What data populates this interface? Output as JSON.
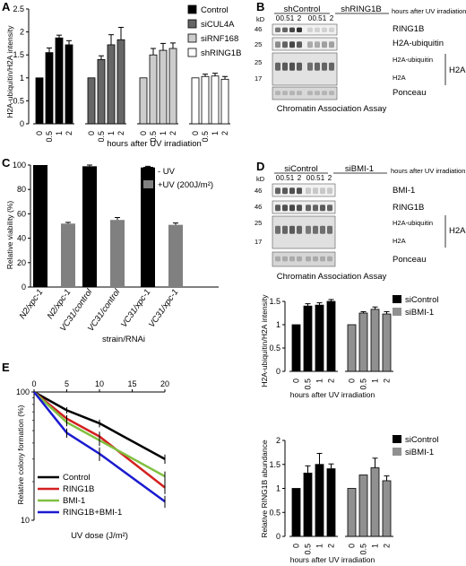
{
  "panels": {
    "A": {
      "label": "A",
      "chart_data": {
        "type": "bar",
        "ylabel": "H2A-ubiquitin/H2A intensity",
        "xlabel": "hours after UV irradiation",
        "ylim": [
          0,
          2.5
        ],
        "yticks": [
          0,
          0.5,
          1,
          1.5,
          2,
          2.5
        ],
        "categories": [
          "0",
          "0.5",
          "1",
          "2"
        ],
        "legend_position": "top-right",
        "series": [
          {
            "name": "Control",
            "color": "#000000",
            "values": [
              1.0,
              1.55,
              1.87,
              1.72
            ],
            "errors": [
              0.0,
              0.1,
              0.06,
              0.09
            ]
          },
          {
            "name": "siCUL4A",
            "color": "#666666",
            "values": [
              1.0,
              1.4,
              1.72,
              1.83
            ],
            "errors": [
              0.0,
              0.08,
              0.22,
              0.27
            ]
          },
          {
            "name": "siRNF168",
            "color": "#cccccc",
            "values": [
              1.0,
              1.5,
              1.6,
              1.64
            ],
            "errors": [
              0.0,
              0.14,
              0.15,
              0.12
            ]
          },
          {
            "name": "shRING1B",
            "color": "#ffffff",
            "values": [
              1.0,
              1.03,
              1.04,
              0.97
            ],
            "errors": [
              0.0,
              0.05,
              0.06,
              0.06
            ]
          }
        ]
      }
    },
    "B": {
      "label": "B",
      "kd": "kD",
      "groups": [
        "shControl",
        "shRING1B"
      ],
      "timepoints": [
        "0",
        "0.5",
        "1",
        "2",
        "0",
        "0.5",
        "1",
        "2"
      ],
      "header_note": "hours after UV irradiation",
      "markers": [
        "46",
        "25",
        "25",
        "17"
      ],
      "bands": [
        "RING1B",
        "H2A-ubiquitin",
        "H2A-ubiquitin",
        "H2A",
        "Ponceau"
      ],
      "bracket_label": "H2A",
      "caption": "Chromatin Association Assay"
    },
    "C": {
      "label": "C",
      "chart_data": {
        "type": "bar",
        "ylabel": "Relative viability (%)",
        "xlabel": "strain/RNAi",
        "ylim": [
          0,
          100
        ],
        "yticks": [
          0,
          20,
          40,
          60,
          80,
          100
        ],
        "categories": [
          "N2/xpc-1",
          "N2/xpc-1",
          "VC31/control",
          "VC31/control",
          "VC31/xpc-1",
          "VC31/xpc-1"
        ],
        "values": [
          100,
          52,
          99,
          55,
          98,
          51
        ],
        "errors": [
          0,
          1,
          1,
          2,
          1,
          1.5
        ],
        "colors": [
          "#000000",
          "#808080",
          "#000000",
          "#808080",
          "#000000",
          "#808080"
        ],
        "legend_position": "top-right",
        "legend": [
          {
            "name": "- UV",
            "color": "#000000"
          },
          {
            "name": "+UV (200J/m²)",
            "color": "#808080"
          }
        ]
      }
    },
    "D": {
      "label": "D",
      "kd": "kD",
      "groups": [
        "siControl",
        "siBMI-1"
      ],
      "timepoints": [
        "0",
        "0.5",
        "1",
        "2",
        "0",
        "0.5",
        "1",
        "2"
      ],
      "header_note": "hours after UV irradiation",
      "markers": [
        "46",
        "46",
        "25",
        "17"
      ],
      "bands": [
        "BMI-1",
        "RING1B",
        "H2A-ubiquitin",
        "H2A",
        "Ponceau"
      ],
      "bracket_label": "H2A",
      "caption": "Chromatin Association Assay",
      "chart1": {
        "type": "bar",
        "ylabel": "H2A-ubiquitin/H2A intensity",
        "xlabel": "hours after UV irradiation",
        "ylim": [
          0,
          1.5
        ],
        "yticks": [
          0,
          0.5,
          1,
          1.5
        ],
        "categories": [
          "0",
          "0.5",
          "1",
          "2"
        ],
        "legend_position": "top-right",
        "series": [
          {
            "name": "siControl",
            "color": "#000000",
            "values": [
              1.0,
              1.4,
              1.42,
              1.5
            ],
            "errors": [
              0.0,
              0.05,
              0.05,
              0.04
            ]
          },
          {
            "name": "siBMI-1",
            "color": "#909090",
            "values": [
              1.0,
              1.25,
              1.33,
              1.23
            ],
            "errors": [
              0.0,
              0.03,
              0.05,
              0.05
            ]
          }
        ]
      },
      "chart2": {
        "type": "bar",
        "ylabel": "Relative RING1B abundance",
        "xlabel": "hours after UV irradiation",
        "ylim": [
          0,
          2
        ],
        "yticks": [
          0,
          0.5,
          1,
          1.5,
          2
        ],
        "categories": [
          "0",
          "0.5",
          "1",
          "2"
        ],
        "legend_position": "top-right",
        "series": [
          {
            "name": "siControl",
            "color": "#000000",
            "values": [
              1.0,
              1.32,
              1.5,
              1.41
            ],
            "errors": [
              0.0,
              0.15,
              0.23,
              0.1
            ]
          },
          {
            "name": "siBMI-1",
            "color": "#909090",
            "values": [
              1.0,
              1.28,
              1.43,
              1.16
            ],
            "errors": [
              0.0,
              0.0,
              0.2,
              0.1
            ]
          }
        ]
      }
    },
    "E": {
      "label": "E",
      "chart_data": {
        "type": "line",
        "ylabel": "Relative colony formation (%)",
        "xlabel": "UV dose (J/m²)",
        "xlim": [
          0,
          20
        ],
        "xticks": [
          0,
          5,
          10,
          15,
          20
        ],
        "yscale": "log",
        "ylim": [
          10,
          100
        ],
        "yticks": [
          10,
          100
        ],
        "x": [
          0,
          5,
          10,
          20
        ],
        "legend_position": "bottom-left",
        "series": [
          {
            "name": "Control",
            "color": "#000000",
            "values": [
              100,
              72,
              57,
              30
            ],
            "errors": [
              0,
              4,
              4,
              2.5
            ]
          },
          {
            "name": "RING1B",
            "color": "#d32020",
            "values": [
              100,
              62,
              45,
              18
            ],
            "errors": [
              0,
              4,
              4,
              2
            ]
          },
          {
            "name": "BMI-1",
            "color": "#80c040",
            "values": [
              100,
              58,
              42,
              22
            ],
            "errors": [
              0,
              4,
              4,
              2
            ]
          },
          {
            "name": "RING1B+BMI-1",
            "color": "#1a1ad0",
            "values": [
              100,
              48,
              33,
              14
            ],
            "errors": [
              0,
              4,
              4,
              1.5
            ]
          }
        ]
      }
    }
  }
}
